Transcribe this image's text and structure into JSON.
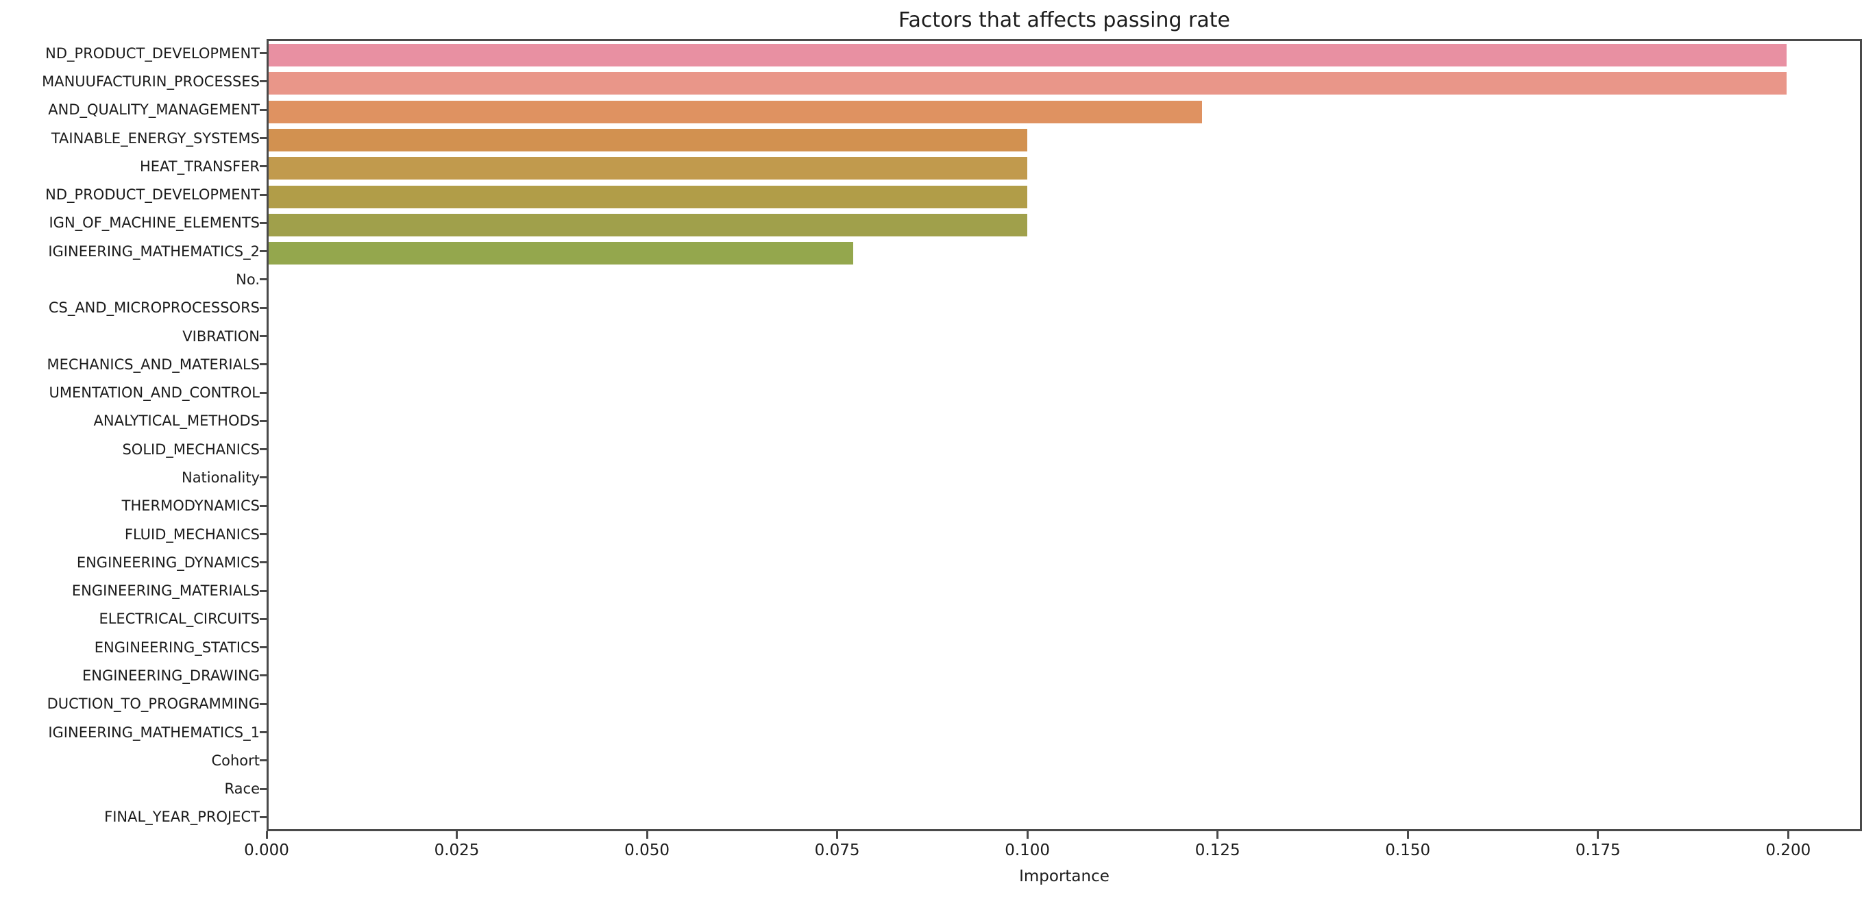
{
  "colors": {
    "background": "#ffffff",
    "spine": "#4a4a4a",
    "text": "#1c1c1c"
  },
  "chart_data": {
    "type": "bar",
    "orientation": "horizontal",
    "title": "Factors that affects passing rate",
    "xlabel": "Importance",
    "ylabel": "",
    "grid": false,
    "legend": false,
    "xlim": [
      0,
      0.2097
    ],
    "x_ticks": [
      0,
      0.025,
      0.05,
      0.075,
      0.1,
      0.125,
      0.15,
      0.175,
      0.2
    ],
    "x_tick_labels": [
      "0.000",
      "0.025",
      "0.050",
      "0.075",
      "0.100",
      "0.125",
      "0.150",
      "0.175",
      "0.200"
    ],
    "categories": [
      "ND_PRODUCT_DEVELOPMENT",
      "MANUUFACTURIN_PROCESSES",
      "AND_QUALITY_MANAGEMENT",
      "TAINABLE_ENERGY_SYSTEMS",
      "HEAT_TRANSFER",
      "ND_PRODUCT_DEVELOPMENT",
      "IGN_OF_MACHINE_ELEMENTS",
      "IGINEERING_MATHEMATICS_2",
      "No.",
      "CS_AND_MICROPROCESSORS",
      "VIBRATION",
      "MECHANICS_AND_MATERIALS",
      "UMENTATION_AND_CONTROL",
      "ANALYTICAL_METHODS",
      "SOLID_MECHANICS",
      "Nationality",
      "THERMODYNAMICS",
      "FLUID_MECHANICS",
      "ENGINEERING_DYNAMICS",
      "ENGINEERING_MATERIALS",
      "ELECTRICAL_CIRCUITS",
      "ENGINEERING_STATICS",
      "ENGINEERING_DRAWING",
      "DUCTION_TO_PROGRAMMING",
      "IGINEERING_MATHEMATICS_1",
      "Cohort",
      "Race",
      "FINAL_YEAR_PROJECT"
    ],
    "values": [
      0.2,
      0.2,
      0.123,
      0.1,
      0.1,
      0.1,
      0.1,
      0.077,
      0,
      0,
      0,
      0,
      0,
      0,
      0,
      0,
      0,
      0,
      0,
      0,
      0,
      0,
      0,
      0,
      0,
      0,
      0,
      0
    ],
    "bar_colors": [
      "#e890a2",
      "#e99689",
      "#df9261",
      "#d29150",
      "#c19a4d",
      "#b19d48",
      "#a0a04b",
      "#94a74d",
      null,
      null,
      null,
      null,
      null,
      null,
      null,
      null,
      null,
      null,
      null,
      null,
      null,
      null,
      null,
      null,
      null,
      null,
      null,
      null
    ]
  }
}
